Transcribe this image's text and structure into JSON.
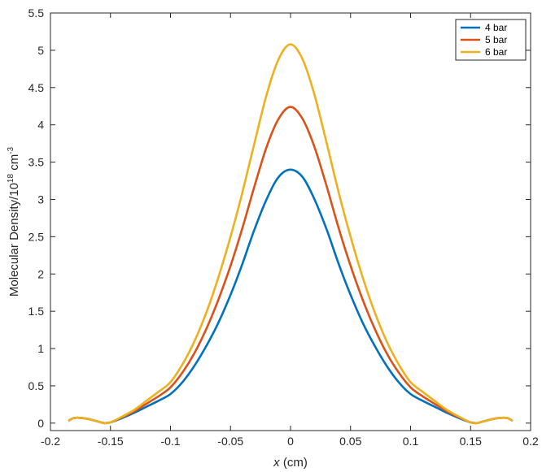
{
  "chart_data": {
    "type": "line",
    "xlabel_var": "x",
    "xlabel_unit": " (cm)",
    "ylabel_main": "Molecular Density/10",
    "ylabel_exp": "18",
    "ylabel_unit": " cm",
    "ylabel_unit_exp": "-3",
    "xlim": [
      -0.2,
      0.2
    ],
    "ylim": [
      -0.1,
      5.5
    ],
    "xticks": [
      -0.2,
      -0.15,
      -0.1,
      -0.05,
      0,
      0.05,
      0.1,
      0.15,
      0.2
    ],
    "xtick_labels": [
      "-0.2",
      "-0.15",
      "-0.1",
      "-0.05",
      "0",
      "0.05",
      "0.1",
      "0.15",
      "0.2"
    ],
    "yticks": [
      0,
      0.5,
      1,
      1.5,
      2,
      2.5,
      3,
      3.5,
      4,
      4.5,
      5,
      5.5
    ],
    "ytick_labels": [
      "0",
      "0.5",
      "1",
      "1.5",
      "2",
      "2.5",
      "3",
      "3.5",
      "4",
      "4.5",
      "5",
      "5.5"
    ],
    "grid": false,
    "legend_position": "top-right",
    "x": [
      -0.185,
      -0.18,
      -0.17,
      -0.16,
      -0.155,
      -0.15,
      -0.14,
      -0.13,
      -0.12,
      -0.11,
      -0.1,
      -0.09,
      -0.08,
      -0.07,
      -0.06,
      -0.05,
      -0.04,
      -0.03,
      -0.02,
      -0.01,
      0,
      0.01,
      0.02,
      0.03,
      0.04,
      0.05,
      0.06,
      0.07,
      0.08,
      0.09,
      0.1,
      0.11,
      0.12,
      0.13,
      0.14,
      0.15,
      0.155,
      0.16,
      0.17,
      0.18,
      0.185
    ],
    "series": [
      {
        "name": "4 bar",
        "color": "#0072BD",
        "values": [
          0.03,
          0.07,
          0.06,
          0.02,
          0.0,
          0.01,
          0.07,
          0.14,
          0.22,
          0.3,
          0.39,
          0.55,
          0.77,
          1.04,
          1.35,
          1.72,
          2.14,
          2.6,
          3.0,
          3.3,
          3.4,
          3.3,
          3.0,
          2.6,
          2.14,
          1.72,
          1.35,
          1.04,
          0.77,
          0.55,
          0.39,
          0.3,
          0.22,
          0.14,
          0.07,
          0.01,
          0.0,
          0.02,
          0.06,
          0.07,
          0.03
        ]
      },
      {
        "name": "5 bar",
        "color": "#D95319",
        "values": [
          0.03,
          0.07,
          0.06,
          0.02,
          0.0,
          0.01,
          0.08,
          0.16,
          0.26,
          0.36,
          0.48,
          0.68,
          0.94,
          1.27,
          1.66,
          2.11,
          2.62,
          3.18,
          3.7,
          4.08,
          4.24,
          4.08,
          3.7,
          3.18,
          2.62,
          2.11,
          1.66,
          1.27,
          0.94,
          0.68,
          0.48,
          0.36,
          0.26,
          0.16,
          0.08,
          0.01,
          0.0,
          0.02,
          0.06,
          0.07,
          0.03
        ]
      },
      {
        "name": "6 bar",
        "color": "#EDB120",
        "values": [
          0.03,
          0.07,
          0.06,
          0.02,
          0.0,
          0.01,
          0.09,
          0.18,
          0.3,
          0.42,
          0.55,
          0.79,
          1.1,
          1.49,
          1.96,
          2.5,
          3.1,
          3.76,
          4.4,
          4.88,
          5.08,
          4.88,
          4.4,
          3.76,
          3.1,
          2.5,
          1.96,
          1.49,
          1.1,
          0.79,
          0.55,
          0.42,
          0.3,
          0.18,
          0.09,
          0.01,
          0.0,
          0.02,
          0.06,
          0.07,
          0.03
        ]
      }
    ]
  }
}
